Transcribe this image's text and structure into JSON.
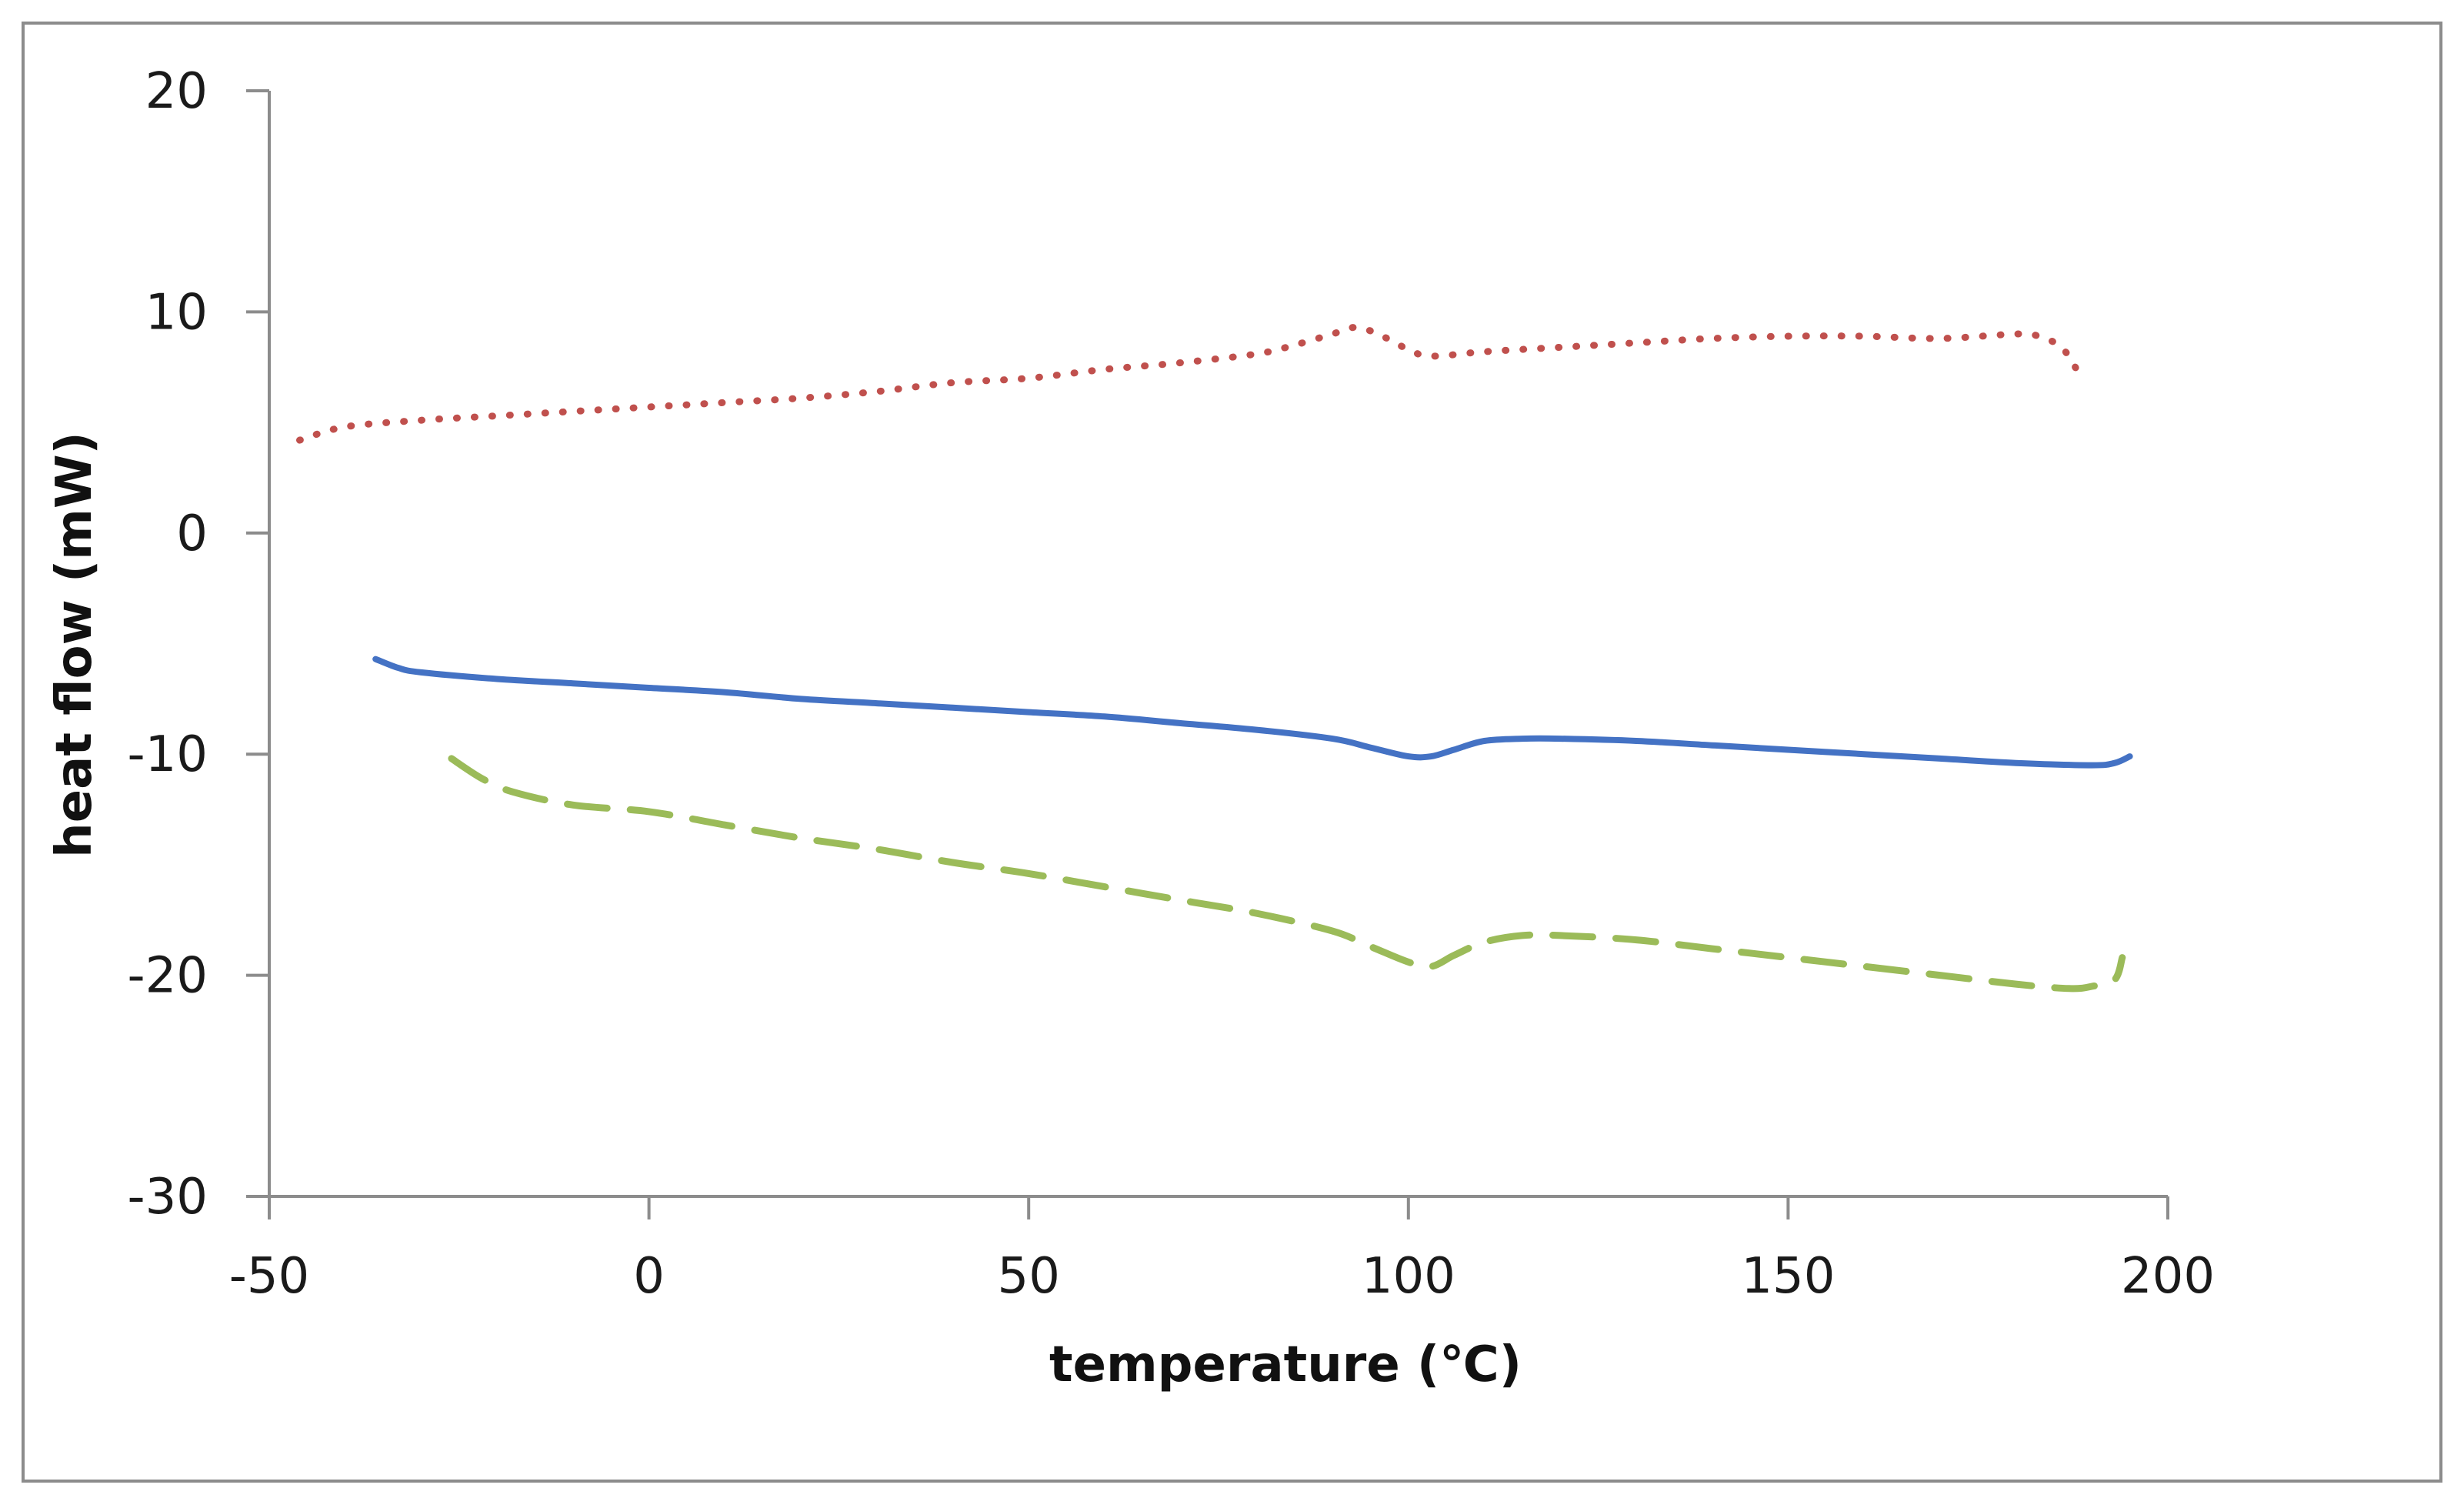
{
  "chart_data": {
    "type": "line",
    "title": "",
    "xlabel": "temperature (℃)",
    "ylabel": "heat flow (mW)",
    "xlim": [
      -50,
      200
    ],
    "ylim": [
      -30,
      20
    ],
    "xticks": [
      -50,
      0,
      50,
      100,
      150,
      200
    ],
    "yticks": [
      -30,
      -20,
      -10,
      0,
      10,
      20
    ],
    "xtick_labels": [
      "-50",
      "0",
      "50",
      "100",
      "150",
      "200"
    ],
    "ytick_labels": [
      "-30",
      "-20",
      "-10",
      "0",
      "10",
      "20"
    ],
    "grid": false,
    "legend": "none",
    "series": [
      {
        "name": "dotted",
        "color": "#c0504d",
        "style": "dotted",
        "x": [
          -46,
          -40,
          -30,
          -20,
          -10,
          0,
          10,
          20,
          30,
          40,
          50,
          60,
          70,
          80,
          85,
          90,
          93,
          96,
          100,
          103,
          110,
          120,
          130,
          140,
          150,
          160,
          170,
          180,
          183,
          186,
          188
        ],
        "y": [
          4.2,
          4.8,
          5.1,
          5.3,
          5.5,
          5.7,
          5.9,
          6.1,
          6.4,
          6.8,
          7.0,
          7.4,
          7.7,
          8.1,
          8.5,
          9.0,
          9.3,
          9.0,
          8.3,
          8.0,
          8.2,
          8.4,
          8.6,
          8.8,
          8.9,
          8.9,
          8.8,
          9.0,
          8.9,
          8.4,
          7.4
        ]
      },
      {
        "name": "solid",
        "color": "#4472c4",
        "style": "solid",
        "x": [
          -36,
          -33,
          -30,
          -20,
          -10,
          0,
          10,
          20,
          30,
          40,
          50,
          60,
          70,
          80,
          90,
          95,
          100,
          103,
          106,
          110,
          115,
          120,
          130,
          140,
          150,
          160,
          170,
          180,
          190,
          193,
          195
        ],
        "y": [
          -5.7,
          -6.1,
          -6.3,
          -6.6,
          -6.8,
          -7.0,
          -7.2,
          -7.5,
          -7.7,
          -7.9,
          -8.1,
          -8.3,
          -8.6,
          -8.9,
          -9.3,
          -9.7,
          -10.1,
          -10.1,
          -9.8,
          -9.4,
          -9.3,
          -9.3,
          -9.4,
          -9.6,
          -9.8,
          -10.0,
          -10.2,
          -10.4,
          -10.5,
          -10.4,
          -10.1
        ]
      },
      {
        "name": "dashed",
        "color": "#9bbb59",
        "style": "dashed",
        "x": [
          -26,
          -22,
          -18,
          -10,
          0,
          10,
          20,
          30,
          40,
          50,
          60,
          70,
          80,
          90,
          95,
          100,
          103,
          106,
          110,
          115,
          120,
          130,
          140,
          150,
          160,
          170,
          180,
          187,
          190,
          193,
          194
        ],
        "y": [
          -10.2,
          -11.1,
          -11.7,
          -12.3,
          -12.6,
          -13.2,
          -13.8,
          -14.3,
          -14.9,
          -15.4,
          -16.0,
          -16.6,
          -17.2,
          -18.0,
          -18.7,
          -19.4,
          -19.6,
          -19.1,
          -18.5,
          -18.2,
          -18.2,
          -18.4,
          -18.8,
          -19.2,
          -19.6,
          -20.0,
          -20.4,
          -20.6,
          -20.5,
          -20.2,
          -19.2
        ]
      }
    ]
  }
}
